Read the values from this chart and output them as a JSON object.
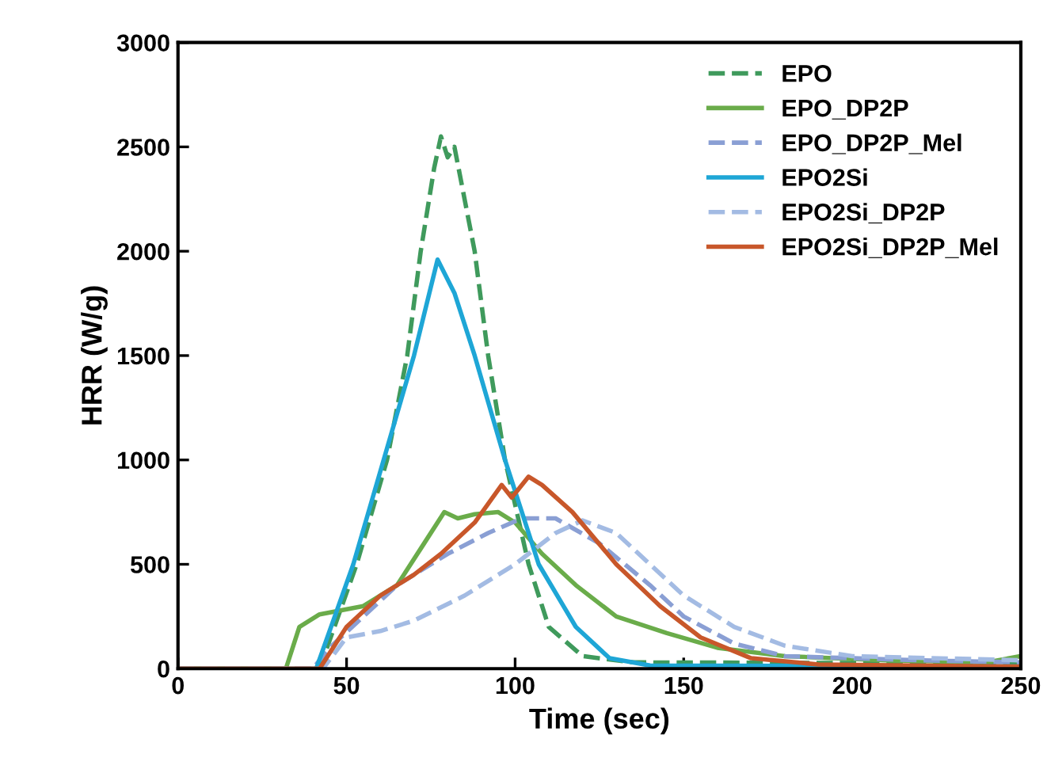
{
  "chart_data": {
    "type": "line",
    "xlabel": "Time (sec)",
    "ylabel": "HRR (W/g)",
    "xlim": [
      0,
      250
    ],
    "ylim": [
      0,
      3000
    ],
    "xticks": [
      0,
      50,
      100,
      150,
      200,
      250
    ],
    "yticks": [
      0,
      500,
      1000,
      1500,
      2000,
      2500,
      3000
    ],
    "grid": false,
    "legend": "top right",
    "marker": "none",
    "series": [
      {
        "name": "EPO",
        "color": "#3f9a5c",
        "line_style": "dashed",
        "x": [
          0,
          42,
          53,
          62,
          68,
          72,
          76,
          78,
          80,
          82,
          88,
          92,
          97,
          104,
          110,
          120,
          135,
          250
        ],
        "values": [
          0,
          0,
          500,
          1000,
          1500,
          2000,
          2400,
          2550,
          2450,
          2500,
          2000,
          1500,
          1000,
          500,
          200,
          60,
          30,
          25
        ]
      },
      {
        "name": "EPO_DP2P",
        "color": "#6aac4a",
        "line_style": "solid",
        "x": [
          0,
          32,
          36,
          42,
          55,
          65,
          73,
          79,
          83,
          88,
          95,
          100,
          108,
          118,
          130,
          145,
          160,
          180,
          210,
          240,
          250
        ],
        "values": [
          0,
          0,
          200,
          260,
          300,
          400,
          600,
          750,
          720,
          740,
          750,
          700,
          550,
          400,
          250,
          170,
          100,
          60,
          40,
          30,
          60
        ]
      },
      {
        "name": "EPO_DP2P_Mel",
        "color": "#8a9fd4",
        "line_style": "dashed",
        "x": [
          0,
          40,
          45,
          55,
          65,
          80,
          92,
          102,
          112,
          125,
          140,
          150,
          165,
          180,
          220,
          250
        ],
        "values": [
          0,
          0,
          100,
          250,
          400,
          550,
          650,
          720,
          720,
          600,
          400,
          250,
          120,
          60,
          40,
          30
        ]
      },
      {
        "name": "EPO2Si",
        "color": "#1ea6d6",
        "line_style": "solid",
        "x": [
          0,
          41,
          52,
          61,
          70,
          77,
          82,
          88,
          97,
          107,
          118,
          128,
          140,
          250
        ],
        "values": [
          0,
          0,
          500,
          1000,
          1500,
          1960,
          1800,
          1500,
          1000,
          500,
          200,
          50,
          15,
          10
        ]
      },
      {
        "name": "EPO2Si_DP2P",
        "color": "#a3bbe3",
        "line_style": "dashed",
        "x": [
          0,
          43,
          50,
          60,
          70,
          85,
          100,
          112,
          120,
          130,
          140,
          150,
          165,
          180,
          200,
          250
        ],
        "values": [
          0,
          0,
          150,
          180,
          230,
          350,
          500,
          650,
          710,
          650,
          500,
          350,
          200,
          110,
          60,
          40
        ]
      },
      {
        "name": "EPO2Si_DP2P_Mel",
        "color": "#c8572a",
        "line_style": "solid",
        "x": [
          0,
          42,
          50,
          60,
          70,
          78,
          88,
          96,
          99,
          104,
          108,
          117,
          130,
          143,
          155,
          170,
          190,
          250
        ],
        "values": [
          0,
          0,
          200,
          350,
          450,
          550,
          700,
          880,
          820,
          920,
          880,
          750,
          500,
          300,
          150,
          50,
          20,
          10
        ]
      }
    ]
  }
}
